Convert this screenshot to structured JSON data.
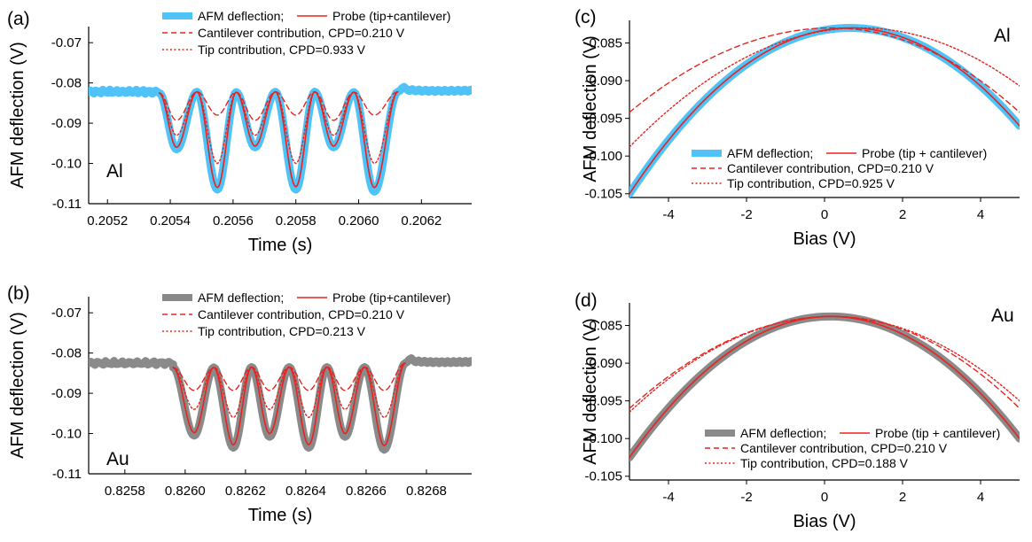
{
  "colors": {
    "al_deflection": "#4fc3f7",
    "au_deflection": "#8a8a8a",
    "probe": "#e8231f"
  },
  "chart_data": [
    {
      "id": "a",
      "type": "line",
      "panel_label": "(a)",
      "material": "Al",
      "xlabel": "Time (s)",
      "ylabel": "AFM deflection (V)",
      "xlim": [
        0.20514,
        0.20636
      ],
      "ylim": [
        -0.11,
        -0.066
      ],
      "xticks": [
        0.2052,
        0.2054,
        0.2056,
        0.2058,
        0.206,
        0.2062
      ],
      "xtick_labels": [
        "0.2052",
        "0.2054",
        "0.2056",
        "0.2058",
        "0.2060",
        "0.2062"
      ],
      "yticks": [
        -0.11,
        -0.1,
        -0.09,
        -0.08,
        -0.07
      ],
      "ytick_labels": [
        "-0.11",
        "-0.10",
        "-0.09",
        "-0.08",
        "-0.07"
      ],
      "legend": {
        "line1": [
          "AFM deflection;",
          "Probe (tip+cantilever)"
        ],
        "line2": "Cantilever contribution, CPD=0.210 V",
        "line3": "Tip contribution, CPD=0.933 V"
      },
      "baseline": -0.0822,
      "signal_window": [
        0.205365,
        0.206125
      ],
      "peaks": [
        -0.0825,
        -0.0822,
        -0.0823,
        -0.0822,
        -0.0822,
        -0.0823
      ],
      "valleys": [
        {
          "x": 0.20542,
          "deflection": -0.0965,
          "probe": -0.096,
          "cantilever": -0.0893,
          "tip": -0.093
        },
        {
          "x": 0.20555,
          "deflection": -0.1065,
          "probe": -0.106,
          "cantilever": -0.088,
          "tip": -0.1
        },
        {
          "x": 0.20567,
          "deflection": -0.096,
          "probe": -0.0957,
          "cantilever": -0.0893,
          "tip": -0.093
        },
        {
          "x": 0.2058,
          "deflection": -0.1065,
          "probe": -0.1058,
          "cantilever": -0.088,
          "tip": -0.1
        },
        {
          "x": 0.20592,
          "deflection": -0.096,
          "probe": -0.0957,
          "cantilever": -0.0893,
          "tip": -0.093
        },
        {
          "x": 0.20605,
          "deflection": -0.107,
          "probe": -0.106,
          "cantilever": -0.088,
          "tip": -0.1
        }
      ]
    },
    {
      "id": "b",
      "type": "line",
      "panel_label": "(b)",
      "material": "Au",
      "xlabel": "Time (s)",
      "ylabel": "AFM deflection (V)",
      "xlim": [
        0.82568,
        0.82695
      ],
      "ylim": [
        -0.11,
        -0.066
      ],
      "xticks": [
        0.8258,
        0.826,
        0.8262,
        0.8264,
        0.8266,
        0.8268
      ],
      "xtick_labels": [
        "0.8258",
        "0.8260",
        "0.8262",
        "0.8264",
        "0.8266",
        "0.8268"
      ],
      "yticks": [
        -0.11,
        -0.1,
        -0.09,
        -0.08,
        -0.07
      ],
      "ytick_labels": [
        "-0.11",
        "-0.10",
        "-0.09",
        "-0.08",
        "-0.07"
      ],
      "legend": {
        "line1": [
          "AFM deflection;",
          "Probe (tip+cantilever)"
        ],
        "line2": "Cantilever contribution, CPD=0.210 V",
        "line3": "Tip contribution, CPD=0.213 V"
      },
      "baseline": -0.0825,
      "signal_window": [
        0.82596,
        0.82673
      ],
      "peaks": [
        -0.0836,
        -0.0836,
        -0.0835,
        -0.0835,
        -0.0835,
        -0.0835
      ],
      "valleys": [
        {
          "x": 0.82603,
          "deflection": -0.1005,
          "probe": -0.0998,
          "cantilever": -0.0893,
          "tip": -0.094
        },
        {
          "x": 0.82616,
          "deflection": -0.1035,
          "probe": -0.1028,
          "cantilever": -0.0893,
          "tip": -0.096
        },
        {
          "x": 0.82628,
          "deflection": -0.1008,
          "probe": -0.1,
          "cantilever": -0.0893,
          "tip": -0.094
        },
        {
          "x": 0.82641,
          "deflection": -0.1035,
          "probe": -0.1028,
          "cantilever": -0.0893,
          "tip": -0.096
        },
        {
          "x": 0.82653,
          "deflection": -0.1008,
          "probe": -0.1,
          "cantilever": -0.0893,
          "tip": -0.094
        },
        {
          "x": 0.82666,
          "deflection": -0.104,
          "probe": -0.103,
          "cantilever": -0.0893,
          "tip": -0.096
        }
      ]
    },
    {
      "id": "c",
      "type": "line",
      "panel_label": "(c)",
      "material": "Al",
      "xlabel": "Bias (V)",
      "ylabel": "AFM deflection (V)",
      "xlim": [
        -5,
        5
      ],
      "ylim": [
        -0.1055,
        -0.082
      ],
      "xticks": [
        -4,
        -2,
        0,
        2,
        4
      ],
      "xtick_labels": [
        "-4",
        "-2",
        "0",
        "2",
        "4"
      ],
      "yticks": [
        -0.105,
        -0.1,
        -0.095,
        -0.09,
        -0.085
      ],
      "ytick_labels": [
        "-0.105",
        "-0.100",
        "-0.095",
        "-0.090",
        "-0.085"
      ],
      "legend": {
        "line1": [
          "AFM deflection;",
          "Probe (tip + cantilever)"
        ],
        "line2": "Cantilever contribution, CPD=0.210 V",
        "line3": "Tip contribution, CPD=0.925 V"
      },
      "series": [
        {
          "role": "deflection",
          "vertex_x": 0.65,
          "vertex_y": -0.083,
          "points": [
            [
              -5,
              -0.105
            ],
            [
              5,
              -0.096
            ]
          ]
        },
        {
          "role": "probe",
          "vertex_x": 0.65,
          "vertex_y": -0.083,
          "points": [
            [
              -5,
              -0.105
            ],
            [
              5,
              -0.096
            ]
          ]
        },
        {
          "role": "cantilever",
          "vertex_x": 0.2,
          "vertex_y": -0.083,
          "points": [
            [
              -5,
              -0.0942
            ],
            [
              5,
              -0.0942
            ]
          ]
        },
        {
          "role": "tip",
          "vertex_x": 0.93,
          "vertex_y": -0.083,
          "points": [
            [
              -5,
              -0.0988
            ],
            [
              5,
              -0.0907
            ]
          ]
        }
      ]
    },
    {
      "id": "d",
      "type": "line",
      "panel_label": "(d)",
      "material": "Au",
      "xlabel": "Bias (V)",
      "ylabel": "AFM deflection (V)",
      "xlim": [
        -5,
        5
      ],
      "ylim": [
        -0.1055,
        -0.082
      ],
      "xticks": [
        -4,
        -2,
        0,
        2,
        4
      ],
      "xtick_labels": [
        "-4",
        "-2",
        "0",
        "2",
        "4"
      ],
      "yticks": [
        -0.105,
        -0.1,
        -0.095,
        -0.09,
        -0.085
      ],
      "ytick_labels": [
        "-0.105",
        "-0.100",
        "-0.095",
        "-0.090",
        "-0.085"
      ],
      "legend": {
        "line1": [
          "AFM deflection;",
          "Probe (tip + cantilever)"
        ],
        "line2": "Cantilever contribution, CPD=0.210 V",
        "line3": "Tip contribution, CPD=0.188 V"
      },
      "series": [
        {
          "role": "deflection",
          "vertex_x": 0.15,
          "vertex_y": -0.0838,
          "points": [
            [
              -5,
              -0.1025
            ],
            [
              5,
              -0.1
            ]
          ]
        },
        {
          "role": "probe",
          "vertex_x": 0.15,
          "vertex_y": -0.0838,
          "points": [
            [
              -5,
              -0.1025
            ],
            [
              5,
              -0.1
            ]
          ]
        },
        {
          "role": "cantilever",
          "vertex_x": 0.2,
          "vertex_y": -0.0838,
          "points": [
            [
              -5,
              -0.096
            ],
            [
              5,
              -0.096
            ]
          ]
        },
        {
          "role": "tip",
          "vertex_x": 0.19,
          "vertex_y": -0.0838,
          "points": [
            [
              -5,
              -0.0965
            ],
            [
              5,
              -0.095
            ]
          ]
        }
      ]
    }
  ]
}
